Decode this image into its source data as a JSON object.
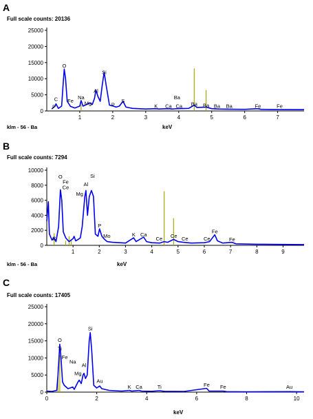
{
  "chart_data": [
    {
      "type": "line",
      "panel": "A",
      "title": "Full scale counts: 20136",
      "xlabel": "keV",
      "sample_label": "klm - 56 - Ba",
      "xlim": [
        0,
        7.8
      ],
      "ylim": [
        0,
        25000
      ],
      "xticks": [
        1,
        2,
        3,
        4,
        5,
        6,
        7
      ],
      "yticks": [
        0,
        5000,
        10000,
        15000,
        20000,
        25000
      ],
      "series": [
        {
          "color": "#0000ee",
          "points": [
            [
              0.15,
              600
            ],
            [
              0.25,
              1500
            ],
            [
              0.28,
              2200
            ],
            [
              0.35,
              800
            ],
            [
              0.45,
              1500
            ],
            [
              0.5,
              9000
            ],
            [
              0.53,
              13000
            ],
            [
              0.57,
              10000
            ],
            [
              0.62,
              3000
            ],
            [
              0.72,
              1400
            ],
            [
              0.85,
              900
            ],
            [
              1.0,
              1500
            ],
            [
              1.04,
              3200
            ],
            [
              1.1,
              1500
            ],
            [
              1.25,
              2200
            ],
            [
              1.3,
              2500
            ],
            [
              1.38,
              2000
            ],
            [
              1.45,
              4000
            ],
            [
              1.49,
              6500
            ],
            [
              1.55,
              4500
            ],
            [
              1.62,
              3000
            ],
            [
              1.68,
              8000
            ],
            [
              1.74,
              12000
            ],
            [
              1.8,
              8000
            ],
            [
              1.9,
              1800
            ],
            [
              2.02,
              1500
            ],
            [
              2.1,
              1200
            ],
            [
              2.2,
              1500
            ],
            [
              2.31,
              3000
            ],
            [
              2.4,
              1200
            ],
            [
              2.6,
              800
            ],
            [
              3.0,
              600
            ],
            [
              3.3,
              700
            ],
            [
              3.4,
              600
            ],
            [
              3.69,
              700
            ],
            [
              3.8,
              600
            ],
            [
              3.95,
              700
            ],
            [
              4.3,
              800
            ],
            [
              4.47,
              1800
            ],
            [
              4.55,
              1100
            ],
            [
              4.83,
              1200
            ],
            [
              5.0,
              700
            ],
            [
              5.2,
              600
            ],
            [
              5.5,
              550
            ],
            [
              6.0,
              500
            ],
            [
              6.4,
              700
            ],
            [
              6.5,
              500
            ],
            [
              7.0,
              450
            ],
            [
              7.8,
              400
            ]
          ]
        }
      ],
      "bars": [
        {
          "x": 1.04,
          "y": 2000
        },
        {
          "x": 4.47,
          "y": 13200
        },
        {
          "x": 4.83,
          "y": 6500
        }
      ],
      "peak_labels": [
        {
          "text": "C",
          "x": 0.28,
          "y": 2900
        },
        {
          "text": "P",
          "x": 0.22,
          "y": 500
        },
        {
          "text": "O",
          "x": 0.53,
          "y": 13300
        },
        {
          "text": "Fe",
          "x": 0.72,
          "y": 2300
        },
        {
          "text": "Na",
          "x": 1.04,
          "y": 3400
        },
        {
          "text": "Mg",
          "x": 1.25,
          "y": 1600
        },
        {
          "text": "Al",
          "x": 1.49,
          "y": 5500
        },
        {
          "text": "Si",
          "x": 1.74,
          "y": 11200
        },
        {
          "text": "P",
          "x": 2.01,
          "y": 1200
        },
        {
          "text": "S",
          "x": 2.31,
          "y": 2400
        },
        {
          "text": "K",
          "x": 3.31,
          "y": 800
        },
        {
          "text": "Ca",
          "x": 3.69,
          "y": 800
        },
        {
          "text": "Ba",
          "x": 3.95,
          "y": 3400
        },
        {
          "text": "Ca",
          "x": 4.01,
          "y": 800
        },
        {
          "text": "Ba",
          "x": 4.47,
          "y": 1400
        },
        {
          "text": "Ba",
          "x": 4.83,
          "y": 1000
        },
        {
          "text": "Ba",
          "x": 5.16,
          "y": 700
        },
        {
          "text": "Ba",
          "x": 5.53,
          "y": 700
        },
        {
          "text": "Fe",
          "x": 6.4,
          "y": 800
        },
        {
          "text": "Fe",
          "x": 7.06,
          "y": 700
        }
      ]
    },
    {
      "type": "line",
      "panel": "B",
      "title": "Full scale counts: 7294",
      "xlabel": "keV",
      "sample_label": "klm - 56 - Ba",
      "xlim": [
        0,
        9.8
      ],
      "ylim": [
        0,
        10000
      ],
      "xticks": [
        1,
        2,
        3,
        4,
        5,
        6,
        7,
        8,
        9
      ],
      "yticks": [
        0,
        2000,
        4000,
        6000,
        8000,
        10000
      ],
      "series": [
        {
          "color": "#0000ee",
          "points": [
            [
              0.0,
              3200
            ],
            [
              0.06,
              5800
            ],
            [
              0.1,
              1500
            ],
            [
              0.2,
              700
            ],
            [
              0.28,
              1000
            ],
            [
              0.35,
              500
            ],
            [
              0.45,
              2500
            ],
            [
              0.52,
              7400
            ],
            [
              0.57,
              6000
            ],
            [
              0.63,
              1800
            ],
            [
              0.72,
              1000
            ],
            [
              0.85,
              500
            ],
            [
              1.0,
              900
            ],
            [
              1.04,
              1200
            ],
            [
              1.1,
              600
            ],
            [
              1.2,
              800
            ],
            [
              1.28,
              1000
            ],
            [
              1.35,
              2500
            ],
            [
              1.45,
              6500
            ],
            [
              1.49,
              7300
            ],
            [
              1.55,
              4000
            ],
            [
              1.62,
              6500
            ],
            [
              1.7,
              7300
            ],
            [
              1.78,
              6500
            ],
            [
              1.85,
              1500
            ],
            [
              1.95,
              1200
            ],
            [
              2.01,
              2200
            ],
            [
              2.1,
              1200
            ],
            [
              2.2,
              800
            ],
            [
              2.3,
              500
            ],
            [
              2.5,
              400
            ],
            [
              3.0,
              300
            ],
            [
              3.31,
              1000
            ],
            [
              3.4,
              500
            ],
            [
              3.69,
              1100
            ],
            [
              3.8,
              500
            ],
            [
              4.0,
              350
            ],
            [
              4.3,
              300
            ],
            [
              4.47,
              500
            ],
            [
              4.6,
              400
            ],
            [
              4.83,
              800
            ],
            [
              5.0,
              500
            ],
            [
              5.2,
              400
            ],
            [
              5.5,
              300
            ],
            [
              6.0,
              350
            ],
            [
              6.2,
              500
            ],
            [
              6.4,
              1400
            ],
            [
              6.5,
              600
            ],
            [
              6.7,
              300
            ],
            [
              7.06,
              400
            ],
            [
              7.2,
              200
            ],
            [
              8.0,
              150
            ],
            [
              9.8,
              100
            ]
          ]
        }
      ],
      "bars": [
        {
          "x": 0.28,
          "y": 1600
        },
        {
          "x": 0.72,
          "y": 600
        },
        {
          "x": 0.85,
          "y": 1200
        },
        {
          "x": 0.93,
          "y": 800
        },
        {
          "x": 4.47,
          "y": 7200
        },
        {
          "x": 4.83,
          "y": 3600
        }
      ],
      "peak_labels": [
        {
          "text": "C",
          "x": 0.28,
          "y": 600
        },
        {
          "text": "O",
          "x": 0.52,
          "y": 8800
        },
        {
          "text": "Fe",
          "x": 0.72,
          "y": 8100
        },
        {
          "text": "Ce",
          "x": 0.72,
          "y": 7400
        },
        {
          "text": "Mg",
          "x": 1.25,
          "y": 6500
        },
        {
          "text": "Al",
          "x": 1.49,
          "y": 7800
        },
        {
          "text": "Si",
          "x": 1.74,
          "y": 8900
        },
        {
          "text": "P",
          "x": 2.01,
          "y": 2300
        },
        {
          "text": "Mo",
          "x": 2.29,
          "y": 900
        },
        {
          "text": "K",
          "x": 3.31,
          "y": 1100
        },
        {
          "text": "Ca",
          "x": 3.69,
          "y": 1100
        },
        {
          "text": "Ce",
          "x": 4.28,
          "y": 550
        },
        {
          "text": "Ce",
          "x": 4.84,
          "y": 900
        },
        {
          "text": "Ce",
          "x": 5.26,
          "y": 550
        },
        {
          "text": "Ce",
          "x": 6.1,
          "y": 550
        },
        {
          "text": "Fe",
          "x": 6.4,
          "y": 1500
        },
        {
          "text": "Fe",
          "x": 7.06,
          "y": 450
        }
      ]
    },
    {
      "type": "line",
      "panel": "C",
      "title": "Full scale counts: 17405",
      "xlabel": "keV",
      "sample_label": "",
      "xlim": [
        0,
        10.3
      ],
      "ylim": [
        0,
        25000
      ],
      "xticks": [
        0,
        2,
        4,
        6,
        8,
        10
      ],
      "yticks": [
        0,
        5000,
        10000,
        15000,
        20000,
        25000
      ],
      "series": [
        {
          "color": "#0000ee",
          "points": [
            [
              0.0,
              300
            ],
            [
              0.2,
              200
            ],
            [
              0.4,
              500
            ],
            [
              0.45,
              5000
            ],
            [
              0.52,
              14000
            ],
            [
              0.57,
              10000
            ],
            [
              0.63,
              3000
            ],
            [
              0.7,
              2000
            ],
            [
              0.85,
              1000
            ],
            [
              1.04,
              1500
            ],
            [
              1.1,
              800
            ],
            [
              1.25,
              3000
            ],
            [
              1.3,
              3500
            ],
            [
              1.38,
              2500
            ],
            [
              1.45,
              5000
            ],
            [
              1.49,
              5500
            ],
            [
              1.55,
              4000
            ],
            [
              1.62,
              5000
            ],
            [
              1.7,
              15000
            ],
            [
              1.74,
              17400
            ],
            [
              1.8,
              12000
            ],
            [
              1.88,
              2000
            ],
            [
              2.0,
              1200
            ],
            [
              2.12,
              1800
            ],
            [
              2.2,
              1000
            ],
            [
              2.5,
              500
            ],
            [
              3.0,
              300
            ],
            [
              3.31,
              500
            ],
            [
              3.4,
              300
            ],
            [
              3.69,
              500
            ],
            [
              3.8,
              300
            ],
            [
              4.2,
              250
            ],
            [
              4.51,
              400
            ],
            [
              4.7,
              250
            ],
            [
              5.5,
              200
            ],
            [
              6.4,
              1100
            ],
            [
              6.5,
              300
            ],
            [
              7.06,
              300
            ],
            [
              7.2,
              150
            ],
            [
              8.0,
              100
            ],
            [
              9.71,
              150
            ],
            [
              10.3,
              100
            ]
          ]
        }
      ],
      "bars": [
        {
          "x": 0.45,
          "y": 7500
        },
        {
          "x": 0.52,
          "y": 10800
        }
      ],
      "peak_labels": [
        {
          "text": "O",
          "x": 0.52,
          "y": 14500
        },
        {
          "text": "Ti",
          "x": 0.52,
          "y": 12000
        },
        {
          "text": "Fe",
          "x": 0.72,
          "y": 9500
        },
        {
          "text": "Na",
          "x": 1.04,
          "y": 8200
        },
        {
          "text": "Mg",
          "x": 1.25,
          "y": 4700
        },
        {
          "text": "Al",
          "x": 1.49,
          "y": 7200
        },
        {
          "text": "Si",
          "x": 1.74,
          "y": 17800
        },
        {
          "text": "Au",
          "x": 2.12,
          "y": 2500
        },
        {
          "text": "K",
          "x": 3.31,
          "y": 800
        },
        {
          "text": "Ca",
          "x": 3.69,
          "y": 800
        },
        {
          "text": "Ti",
          "x": 4.51,
          "y": 800
        },
        {
          "text": "Fe",
          "x": 6.4,
          "y": 1400
        },
        {
          "text": "Fe",
          "x": 7.06,
          "y": 800
        },
        {
          "text": "Au",
          "x": 9.71,
          "y": 800
        }
      ]
    }
  ]
}
